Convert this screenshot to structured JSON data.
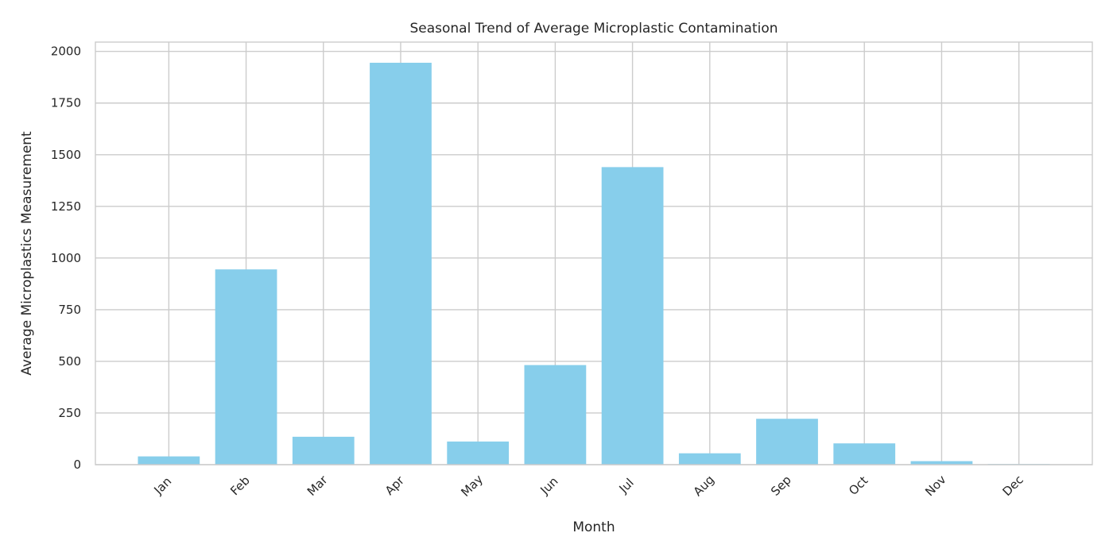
{
  "chart_data": {
    "type": "bar",
    "title": "Seasonal Trend of Average Microplastic Contamination",
    "xlabel": "Month",
    "ylabel": "Average Microplastics Measurement",
    "categories": [
      "Jan",
      "Feb",
      "Mar",
      "Apr",
      "May",
      "Jun",
      "Jul",
      "Aug",
      "Sep",
      "Oct",
      "Nov",
      "Dec"
    ],
    "values": [
      40,
      945,
      135,
      1945,
      112,
      482,
      1440,
      55,
      222,
      103,
      17,
      3
    ],
    "ylim": [
      0,
      2045
    ],
    "yticks": [
      0,
      250,
      500,
      750,
      1000,
      1250,
      1500,
      1750,
      2000
    ],
    "grid": true,
    "bar_color": "#87ceeb"
  }
}
